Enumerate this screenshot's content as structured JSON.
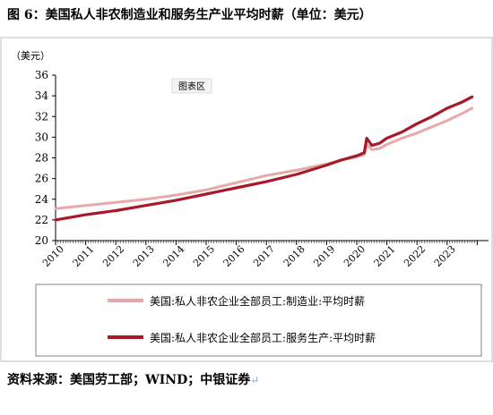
{
  "figure": {
    "title": "图 6：美国私人非农制造业和服务生产业平均时薪（单位：美元）",
    "source": "资料来源：美国劳工部；WIND；中银证券",
    "source_return_mark": "↵"
  },
  "chart_data": {
    "type": "line",
    "title": "图 6：美国私人非农制造业和服务生产业平均时薪（单位：美元）",
    "unit_label": "（美元）",
    "area_label": "图表区",
    "xlabel": "",
    "ylabel": "（美元）",
    "ylim": [
      20,
      36
    ],
    "yticks": [
      20,
      22,
      24,
      26,
      28,
      30,
      32,
      34,
      36
    ],
    "xlim": [
      2010,
      2024
    ],
    "xticks": [
      "2010",
      "2011",
      "2012",
      "2013",
      "2014",
      "2015",
      "2016",
      "2017",
      "2018",
      "2019",
      "2020",
      "2021",
      "2022",
      "2023"
    ],
    "grid": false,
    "legend_position": "bottom",
    "series": [
      {
        "name": "美国:私人非农企业全部员工:制造业:平均时薪",
        "color": "#e8a8a8",
        "x": [
          2010.0,
          2011.0,
          2012.0,
          2013.0,
          2014.0,
          2015.0,
          2016.0,
          2017.0,
          2018.0,
          2019.0,
          2019.5,
          2020.0,
          2020.25,
          2020.33,
          2020.5,
          2020.75,
          2021.0,
          2021.5,
          2022.0,
          2022.5,
          2023.0,
          2023.5,
          2023.83
        ],
        "y": [
          23.1,
          23.4,
          23.7,
          24.0,
          24.4,
          24.9,
          25.6,
          26.3,
          26.8,
          27.4,
          27.8,
          28.1,
          28.3,
          29.3,
          28.8,
          28.9,
          29.3,
          29.9,
          30.4,
          31.0,
          31.6,
          32.3,
          32.8
        ]
      },
      {
        "name": "美国:私人非农企业全部员工:服务生产:平均时薪",
        "color": "#a8192a",
        "x": [
          2010.0,
          2011.0,
          2012.0,
          2013.0,
          2014.0,
          2015.0,
          2016.0,
          2017.0,
          2018.0,
          2019.0,
          2019.5,
          2020.0,
          2020.25,
          2020.33,
          2020.5,
          2020.75,
          2021.0,
          2021.5,
          2022.0,
          2022.5,
          2023.0,
          2023.5,
          2023.83
        ],
        "y": [
          22.0,
          22.5,
          22.9,
          23.4,
          23.9,
          24.5,
          25.1,
          25.7,
          26.4,
          27.3,
          27.8,
          28.2,
          28.5,
          29.9,
          29.2,
          29.4,
          29.9,
          30.5,
          31.3,
          32.0,
          32.8,
          33.4,
          33.9
        ]
      }
    ]
  }
}
